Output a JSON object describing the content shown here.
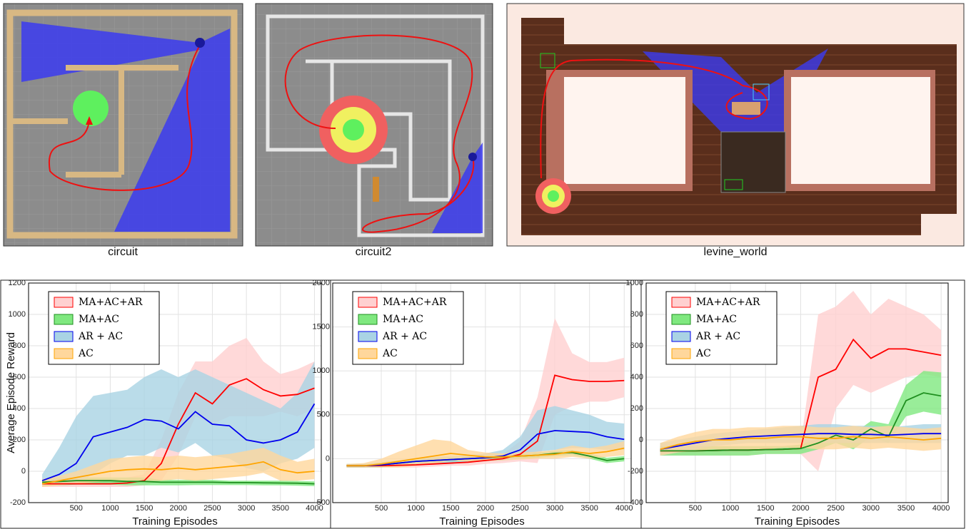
{
  "images": [
    {
      "caption": "circuit"
    },
    {
      "caption": "circuit2"
    },
    {
      "caption": "levine_world"
    }
  ],
  "chart_data": [
    {
      "type": "line",
      "ylabel": "Average Episode Reward",
      "xlabel": "Training Episodes",
      "x": [
        0,
        250,
        500,
        750,
        1000,
        1250,
        1500,
        1750,
        2000,
        2250,
        2500,
        2750,
        3000,
        3250,
        3500,
        3750,
        4000
      ],
      "xlim": [
        -200,
        4100
      ],
      "xticks": [
        500,
        1000,
        1500,
        2000,
        2500,
        3000,
        3500,
        4000
      ],
      "ylim": [
        -200,
        1200
      ],
      "yticks": [
        -200,
        0,
        200,
        400,
        600,
        800,
        1000,
        1200
      ],
      "grid": true,
      "legend": "upper left",
      "series": [
        {
          "name": "MA+AC+AR",
          "color": "#ff0000",
          "band_color": "#ffd0d0",
          "values": [
            -80,
            -80,
            -80,
            -80,
            -80,
            -75,
            -60,
            50,
            300,
            500,
            430,
            550,
            590,
            520,
            480,
            490,
            530
          ],
          "lower": [
            -100,
            -100,
            -100,
            -100,
            -100,
            -100,
            -90,
            -60,
            100,
            350,
            300,
            350,
            350,
            350,
            380,
            350,
            400
          ],
          "upper": [
            -50,
            -50,
            -50,
            -50,
            -50,
            -40,
            -20,
            200,
            500,
            700,
            700,
            800,
            850,
            700,
            620,
            650,
            700
          ]
        },
        {
          "name": "MA+AC",
          "color": "#1f8f1f",
          "band_color": "#7fe87f",
          "values": [
            -70,
            -65,
            -60,
            -60,
            -60,
            -65,
            -65,
            -70,
            -70,
            -70,
            -70,
            -72,
            -72,
            -74,
            -75,
            -76,
            -80
          ],
          "lower": [
            -90,
            -90,
            -85,
            -85,
            -85,
            -90,
            -90,
            -90,
            -90,
            -88,
            -88,
            -88,
            -88,
            -90,
            -90,
            -92,
            -95
          ],
          "upper": [
            -50,
            -40,
            -40,
            -40,
            -40,
            -40,
            -40,
            -55,
            -55,
            -55,
            -55,
            -60,
            -60,
            -60,
            -60,
            -62,
            -65
          ]
        },
        {
          "name": "AR + AC",
          "color": "#0000ee",
          "band_color": "#a9d3e4",
          "values": [
            -60,
            -20,
            50,
            220,
            250,
            280,
            330,
            320,
            270,
            380,
            300,
            290,
            200,
            180,
            200,
            250,
            430
          ],
          "lower": [
            -90,
            -80,
            -80,
            -20,
            50,
            100,
            100,
            150,
            120,
            180,
            100,
            80,
            20,
            0,
            50,
            80,
            150
          ],
          "upper": [
            -20,
            150,
            350,
            480,
            500,
            520,
            600,
            650,
            600,
            650,
            600,
            550,
            500,
            450,
            400,
            500,
            700
          ]
        },
        {
          "name": "AC",
          "color": "#ffa500",
          "band_color": "#ffd79c",
          "values": [
            -80,
            -60,
            -40,
            -20,
            0,
            10,
            15,
            10,
            20,
            10,
            20,
            30,
            40,
            60,
            10,
            -10,
            0
          ],
          "lower": [
            -100,
            -90,
            -80,
            -70,
            -60,
            -60,
            -60,
            -60,
            -50,
            -60,
            -50,
            -40,
            -30,
            -10,
            -60,
            -60,
            -50
          ],
          "upper": [
            -50,
            -30,
            0,
            40,
            80,
            90,
            100,
            90,
            100,
            90,
            100,
            110,
            130,
            150,
            100,
            60,
            80
          ]
        }
      ]
    },
    {
      "type": "line",
      "xlabel": "Training Episodes",
      "x": [
        0,
        250,
        500,
        750,
        1000,
        1250,
        1500,
        1750,
        2000,
        2250,
        2500,
        2750,
        3000,
        3250,
        3500,
        3750,
        4000
      ],
      "xlim": [
        -200,
        4100
      ],
      "xticks": [
        500,
        1000,
        1500,
        2000,
        2500,
        3000,
        3500,
        4000
      ],
      "ylim": [
        -500,
        2000
      ],
      "yticks": [
        -500,
        0,
        500,
        1000,
        1500,
        2000
      ],
      "grid": true,
      "legend": "upper left",
      "series": [
        {
          "name": "MA+AC+AR",
          "color": "#ff0000",
          "band_color": "#ffd0d0",
          "values": [
            -80,
            -80,
            -80,
            -75,
            -70,
            -60,
            -50,
            -40,
            -20,
            0,
            50,
            200,
            950,
            900,
            880,
            880,
            890
          ],
          "lower": [
            -100,
            -100,
            -100,
            -100,
            -100,
            -90,
            -80,
            -80,
            -60,
            -50,
            -30,
            -50,
            500,
            600,
            650,
            650,
            700
          ],
          "upper": [
            -60,
            -60,
            -60,
            -50,
            -40,
            -30,
            -20,
            0,
            20,
            50,
            200,
            700,
            1600,
            1200,
            1100,
            1100,
            1150
          ]
        },
        {
          "name": "MA+AC",
          "color": "#1f8f1f",
          "band_color": "#7fe87f",
          "values": [
            -80,
            -80,
            -70,
            -50,
            -30,
            -20,
            -10,
            0,
            10,
            20,
            30,
            40,
            60,
            70,
            30,
            -20,
            0
          ],
          "lower": [
            -100,
            -100,
            -100,
            -80,
            -60,
            -50,
            -40,
            -30,
            -20,
            -10,
            0,
            10,
            30,
            40,
            0,
            -50,
            -30
          ],
          "upper": [
            -60,
            -60,
            -40,
            -20,
            0,
            10,
            20,
            30,
            40,
            50,
            60,
            70,
            90,
            100,
            60,
            10,
            30
          ]
        },
        {
          "name": "AR + AC",
          "color": "#0000ee",
          "band_color": "#a9d3e4",
          "values": [
            -80,
            -80,
            -70,
            -50,
            -30,
            -20,
            -10,
            0,
            10,
            30,
            100,
            280,
            320,
            310,
            300,
            250,
            220
          ],
          "lower": [
            -100,
            -100,
            -100,
            -80,
            -70,
            -60,
            -50,
            -40,
            -30,
            -20,
            0,
            80,
            100,
            120,
            120,
            100,
            100
          ],
          "upper": [
            -60,
            -60,
            -40,
            -20,
            10,
            20,
            30,
            40,
            60,
            100,
            250,
            550,
            600,
            550,
            500,
            420,
            400
          ]
        },
        {
          "name": "AC",
          "color": "#ffa500",
          "band_color": "#ffd79c",
          "values": [
            -80,
            -80,
            -60,
            -30,
            0,
            30,
            60,
            40,
            20,
            20,
            30,
            40,
            50,
            80,
            60,
            80,
            120
          ],
          "lower": [
            -100,
            -100,
            -100,
            -100,
            -80,
            -60,
            -20,
            -30,
            -30,
            -20,
            -10,
            0,
            0,
            20,
            0,
            20,
            40
          ],
          "upper": [
            -60,
            -50,
            0,
            80,
            150,
            220,
            200,
            100,
            70,
            60,
            70,
            80,
            100,
            150,
            120,
            150,
            200
          ]
        }
      ]
    },
    {
      "type": "line",
      "xlabel": "Training Episodes",
      "x": [
        0,
        250,
        500,
        750,
        1000,
        1250,
        1500,
        1750,
        2000,
        2250,
        2500,
        2750,
        3000,
        3250,
        3500,
        3750,
        4000
      ],
      "xlim": [
        -200,
        4100
      ],
      "xticks": [
        500,
        1000,
        1500,
        2000,
        2500,
        3000,
        3500,
        4000
      ],
      "ylim": [
        -400,
        1000
      ],
      "yticks": [
        -400,
        -200,
        0,
        200,
        400,
        600,
        800,
        1000
      ],
      "grid": true,
      "legend": "upper left",
      "series": [
        {
          "name": "MA+AC+AR",
          "color": "#ff0000",
          "band_color": "#ffd0d0",
          "values": [
            -70,
            -70,
            -70,
            -68,
            -65,
            -65,
            -62,
            -60,
            -55,
            400,
            450,
            640,
            520,
            580,
            580,
            560,
            540
          ],
          "lower": [
            -100,
            -100,
            -100,
            -100,
            -100,
            -100,
            -90,
            -90,
            -90,
            -200,
            200,
            350,
            300,
            350,
            400,
            420,
            400
          ],
          "upper": [
            -40,
            -40,
            -40,
            -40,
            -40,
            -40,
            -40,
            -40,
            -30,
            800,
            850,
            950,
            800,
            900,
            850,
            800,
            700
          ]
        },
        {
          "name": "MA+AC",
          "color": "#1f8f1f",
          "band_color": "#7fe87f",
          "values": [
            -70,
            -70,
            -70,
            -68,
            -65,
            -65,
            -62,
            -60,
            -55,
            -20,
            30,
            0,
            70,
            20,
            250,
            300,
            280
          ],
          "lower": [
            -100,
            -100,
            -100,
            -100,
            -100,
            -100,
            -90,
            -90,
            -90,
            -60,
            -20,
            -60,
            20,
            -20,
            150,
            180,
            160
          ],
          "upper": [
            -40,
            -40,
            -40,
            -40,
            -40,
            -40,
            -40,
            -40,
            -30,
            10,
            60,
            40,
            120,
            100,
            350,
            440,
            430
          ]
        },
        {
          "name": "AR + AC",
          "color": "#0000ee",
          "band_color": "#a9d3e4",
          "values": [
            -60,
            -40,
            -20,
            0,
            10,
            20,
            25,
            30,
            35,
            40,
            40,
            35,
            35,
            30,
            35,
            40,
            40
          ],
          "lower": [
            -100,
            -80,
            -60,
            -40,
            -30,
            -20,
            -20,
            -20,
            -20,
            -20,
            -20,
            -20,
            -20,
            -20,
            -20,
            -20,
            -20
          ],
          "upper": [
            -20,
            0,
            20,
            40,
            50,
            60,
            70,
            80,
            90,
            100,
            100,
            90,
            90,
            80,
            90,
            100,
            100
          ]
        },
        {
          "name": "AC",
          "color": "#ffa500",
          "band_color": "#ffd79c",
          "values": [
            -60,
            -30,
            -10,
            0,
            0,
            10,
            10,
            20,
            20,
            10,
            10,
            20,
            10,
            20,
            10,
            0,
            10
          ],
          "lower": [
            -100,
            -80,
            -70,
            -60,
            -60,
            -60,
            -60,
            -50,
            -50,
            -60,
            -60,
            -50,
            -60,
            -50,
            -60,
            -70,
            -60
          ],
          "upper": [
            -20,
            20,
            50,
            70,
            70,
            80,
            80,
            90,
            90,
            80,
            80,
            90,
            80,
            90,
            80,
            70,
            80
          ]
        }
      ]
    }
  ]
}
